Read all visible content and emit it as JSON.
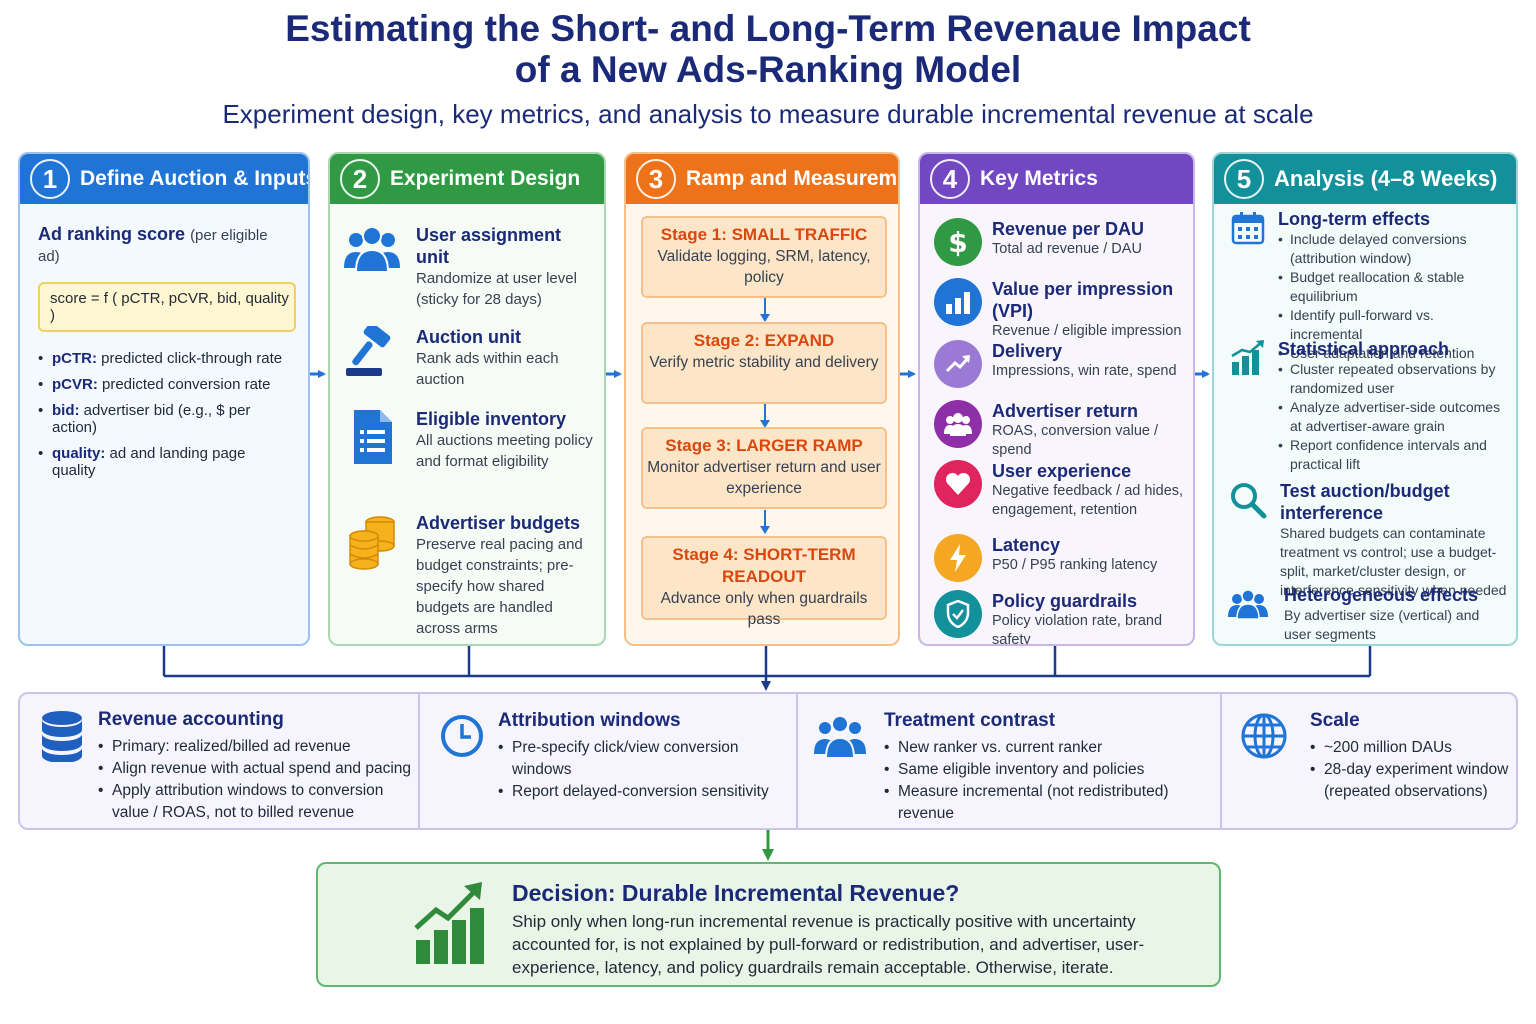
{
  "header": {
    "title_line1": "Estimating the Short- and Long-Term Revenaue Impact",
    "title_line2": "of a New Ads-Ranking Model",
    "subtitle": "Experiment design, key metrics, and analysis to measure durable incremental revenue at scale"
  },
  "colors": {
    "blue": "#1f74d6",
    "green": "#2f9a43",
    "orange": "#ee7219",
    "purple": "#7147c2",
    "teal": "#13919b",
    "navy": "#1b2a78"
  },
  "panel1": {
    "num": "1",
    "title": "Define Auction & Inputs",
    "rank_head": "Ad ranking score",
    "rank_paren": "(per eligible ad)",
    "formula": "score = f ( pCTR, pCVR, bid, quality )",
    "bullets": [
      {
        "term": "pCTR:",
        "text": " predicted click-through rate"
      },
      {
        "term": "pCVR:",
        "text": " predicted conversion rate"
      },
      {
        "term": "bid:",
        "text": " advertiser bid (e.g., $ per action)"
      },
      {
        "term": "quality:",
        "text": " ad and landing page quality"
      }
    ]
  },
  "panel2": {
    "num": "2",
    "title": "Experiment Design",
    "items": [
      {
        "icon": "users-icon",
        "title": "User assignment unit",
        "desc": "Randomize at user level (sticky for 28 days)"
      },
      {
        "icon": "gavel-icon",
        "title": "Auction unit",
        "desc": "Rank ads within each auction"
      },
      {
        "icon": "document-list-icon",
        "title": "Eligible inventory",
        "desc": "All auctions meeting policy and format eligibility"
      },
      {
        "icon": "coin-stack-icon",
        "title": "Advertiser budgets",
        "desc": "Preserve real pacing and budget constraints; pre-specify how shared budgets are handled across arms"
      }
    ]
  },
  "panel3": {
    "num": "3",
    "title": "Ramp and Measurement",
    "stages": [
      {
        "title": "Stage 1: SMALL TRAFFIC",
        "desc": "Validate logging, SRM, latency, policy"
      },
      {
        "title": "Stage 2: EXPAND",
        "desc": "Verify metric stability and delivery"
      },
      {
        "title": "Stage 3: LARGER RAMP",
        "desc": "Monitor advertiser return and user experience"
      },
      {
        "title": "Stage 4: SHORT-TERM READOUT",
        "desc": "Advance only when guardrails pass"
      }
    ]
  },
  "panel4": {
    "num": "4",
    "title": "Key Metrics",
    "metrics": [
      {
        "icon": "dollar-icon",
        "color": "#2f9a43",
        "title": "Revenue per DAU",
        "desc": "Total ad revenue / DAU"
      },
      {
        "icon": "bar-chart-icon",
        "color": "#1f74d6",
        "title": "Value per impression (VPI)",
        "desc": "Revenue / eligible impression"
      },
      {
        "icon": "trend-up-icon",
        "color": "#9b7ad6",
        "title": "Delivery",
        "desc": "Impressions, win rate, spend"
      },
      {
        "icon": "people-icon",
        "color": "#8e2fa8",
        "title": "Advertiser return",
        "desc": "ROAS, conversion value / spend"
      },
      {
        "icon": "heart-icon",
        "color": "#e0245e",
        "title": "User experience",
        "desc": "Negative feedback / ad hides, engagement, retention"
      },
      {
        "icon": "lightning-icon",
        "color": "#f5a623",
        "title": "Latency",
        "desc": "P50 / P95 ranking latency"
      },
      {
        "icon": "shield-check-icon",
        "color": "#13919b",
        "title": "Policy guardrails",
        "desc": "Policy violation rate, brand safety"
      }
    ]
  },
  "panel5": {
    "num": "5",
    "title": "Analysis (4–8 Weeks)",
    "long_term": {
      "title": "Long-term effects",
      "bullets": [
        "Include delayed conversions (attribution window)",
        "Budget reallocation & stable equilibrium",
        "Identify pull-forward vs. incremental",
        "User adaptation and retention"
      ]
    },
    "statistical": {
      "title": "Statistical approach",
      "bullets": [
        "Cluster repeated observations by randomized user",
        "Analyze advertiser-side outcomes at advertiser-aware grain",
        "Report confidence intervals and practical lift"
      ]
    },
    "interference": {
      "title": "Test auction/budget interference",
      "desc": "Shared budgets can contaminate treatment vs control; use a budget-split, market/cluster design, or interference sensitivity when needed"
    },
    "heterogeneous": {
      "title": "Heterogeneous effects",
      "desc": "By advertiser size (vertical) and user segments"
    }
  },
  "bottom": {
    "revenue": {
      "title": "Revenue accounting",
      "bullets": [
        "Primary: realized/billed ad revenue",
        "Align revenue with actual spend and pacing",
        "Apply attribution windows to conversion value / ROAS, not to billed revenue"
      ]
    },
    "attribution": {
      "title": "Attribution windows",
      "bullets": [
        "Pre-specify click/view conversion windows",
        "Report delayed-conversion sensitivity"
      ]
    },
    "treatment": {
      "title": "Treatment contrast",
      "bullets": [
        "New ranker vs. current ranker",
        "Same eligible inventory and policies",
        "Measure incremental (not redistributed) revenue"
      ]
    },
    "scale": {
      "title": "Scale",
      "bullets": [
        "~200 million DAUs",
        "28-day experiment window (repeated observations)"
      ]
    }
  },
  "decision": {
    "title": "Decision: Durable Incremental Revenue?",
    "desc": "Ship only when long-run incremental revenue is practically positive with uncertainty accounted for, is not explained by pull-forward or redistribution, and advertiser, user-experience, latency, and policy guardrails remain acceptable. Otherwise, iterate."
  }
}
